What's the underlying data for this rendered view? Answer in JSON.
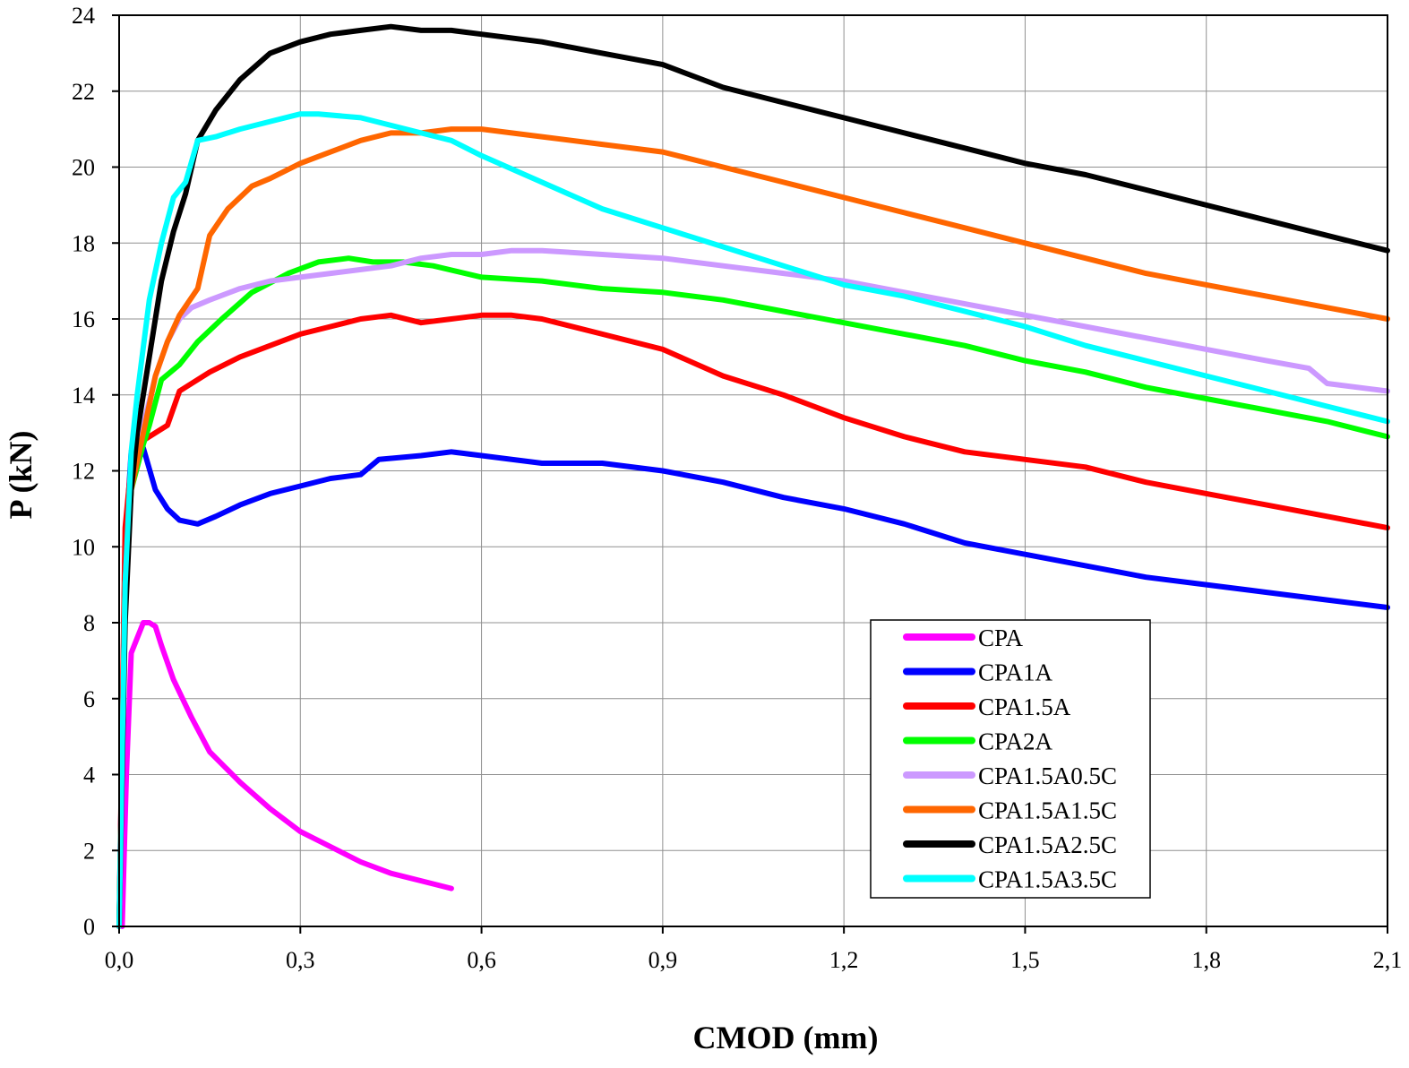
{
  "chart_data": {
    "type": "line",
    "title": "",
    "xlabel": "CMOD (mm)",
    "ylabel": "P (kN)",
    "xlim": [
      0,
      2.1
    ],
    "ylim": [
      0,
      24
    ],
    "xticks": [
      "0,0",
      "0,3",
      "0,6",
      "0,9",
      "1,2",
      "1,5",
      "1,8",
      "2,1"
    ],
    "yticks": [
      "0",
      "2",
      "4",
      "6",
      "8",
      "10",
      "12",
      "14",
      "16",
      "18",
      "20",
      "22",
      "24"
    ],
    "grid": true,
    "legend_position": "bottom-right",
    "series": [
      {
        "name": "CPA",
        "color": "#ff00ff",
        "x": [
          0.005,
          0.012,
          0.02,
          0.03,
          0.04,
          0.05,
          0.06,
          0.07,
          0.09,
          0.12,
          0.15,
          0.2,
          0.25,
          0.3,
          0.35,
          0.4,
          0.45,
          0.5,
          0.55
        ],
        "y": [
          0,
          4,
          7.2,
          7.6,
          8.0,
          8.0,
          7.9,
          7.4,
          6.5,
          5.5,
          4.6,
          3.8,
          3.1,
          2.5,
          2.1,
          1.7,
          1.4,
          1.2,
          1.0
        ]
      },
      {
        "name": "CPA1A",
        "color": "#0000ff",
        "x": [
          0,
          0.01,
          0.02,
          0.03,
          0.04,
          0.06,
          0.08,
          0.1,
          0.13,
          0.16,
          0.2,
          0.25,
          0.3,
          0.35,
          0.4,
          0.43,
          0.5,
          0.55,
          0.6,
          0.7,
          0.8,
          0.9,
          1.0,
          1.1,
          1.2,
          1.3,
          1.4,
          1.5,
          1.6,
          1.7,
          1.8,
          1.9,
          2.0,
          2.1
        ],
        "y": [
          0,
          10,
          12.5,
          13.0,
          12.6,
          11.5,
          11.0,
          10.7,
          10.6,
          10.8,
          11.1,
          11.4,
          11.6,
          11.8,
          11.9,
          12.3,
          12.4,
          12.5,
          12.4,
          12.2,
          12.2,
          12.0,
          11.7,
          11.3,
          11.0,
          10.6,
          10.1,
          9.8,
          9.5,
          9.2,
          9.0,
          8.8,
          8.6,
          8.4
        ]
      },
      {
        "name": "CPA1.5A",
        "color": "#ff0000",
        "x": [
          0,
          0.01,
          0.02,
          0.04,
          0.06,
          0.08,
          0.1,
          0.12,
          0.15,
          0.2,
          0.25,
          0.3,
          0.35,
          0.4,
          0.45,
          0.5,
          0.55,
          0.6,
          0.65,
          0.7,
          0.8,
          0.9,
          1.0,
          1.1,
          1.2,
          1.3,
          1.4,
          1.5,
          1.6,
          1.7,
          1.8,
          1.9,
          2.0,
          2.1
        ],
        "y": [
          0,
          10.5,
          12.2,
          12.8,
          13.0,
          13.2,
          14.1,
          14.3,
          14.6,
          15.0,
          15.3,
          15.6,
          15.8,
          16.0,
          16.1,
          15.9,
          16.0,
          16.1,
          16.1,
          16.0,
          15.6,
          15.2,
          14.5,
          14.0,
          13.4,
          12.9,
          12.5,
          12.3,
          12.1,
          11.7,
          11.4,
          11.1,
          10.8,
          10.5
        ]
      },
      {
        "name": "CPA2A",
        "color": "#00ff00",
        "x": [
          0,
          0.01,
          0.02,
          0.04,
          0.05,
          0.07,
          0.1,
          0.13,
          0.17,
          0.22,
          0.28,
          0.33,
          0.38,
          0.42,
          0.47,
          0.52,
          0.6,
          0.7,
          0.8,
          0.9,
          1.0,
          1.1,
          1.2,
          1.3,
          1.4,
          1.5,
          1.6,
          1.7,
          1.8,
          1.9,
          2.0,
          2.1
        ],
        "y": [
          0,
          9,
          11.5,
          12.7,
          13.2,
          14.4,
          14.8,
          15.4,
          16.0,
          16.7,
          17.2,
          17.5,
          17.6,
          17.5,
          17.5,
          17.4,
          17.1,
          17.0,
          16.8,
          16.7,
          16.5,
          16.2,
          15.9,
          15.6,
          15.3,
          14.9,
          14.6,
          14.2,
          13.9,
          13.6,
          13.3,
          12.9
        ]
      },
      {
        "name": "CPA1.5A0.5C",
        "color": "#cc99ff",
        "x": [
          0,
          0.01,
          0.02,
          0.04,
          0.06,
          0.08,
          0.1,
          0.12,
          0.15,
          0.2,
          0.25,
          0.3,
          0.35,
          0.4,
          0.45,
          0.5,
          0.55,
          0.6,
          0.65,
          0.7,
          0.8,
          0.9,
          1.0,
          1.1,
          1.2,
          1.3,
          1.4,
          1.5,
          1.6,
          1.7,
          1.8,
          1.9,
          1.97,
          2.0,
          2.1
        ],
        "y": [
          0,
          9,
          12.0,
          13.2,
          14.5,
          15.4,
          16.0,
          16.3,
          16.5,
          16.8,
          17.0,
          17.1,
          17.2,
          17.3,
          17.4,
          17.6,
          17.7,
          17.7,
          17.8,
          17.8,
          17.7,
          17.6,
          17.4,
          17.2,
          17.0,
          16.7,
          16.4,
          16.1,
          15.8,
          15.5,
          15.2,
          14.9,
          14.7,
          14.3,
          14.1
        ]
      },
      {
        "name": "CPA1.5A1.5C",
        "color": "#ff6600",
        "x": [
          0,
          0.01,
          0.02,
          0.04,
          0.06,
          0.08,
          0.1,
          0.13,
          0.15,
          0.18,
          0.22,
          0.25,
          0.3,
          0.35,
          0.4,
          0.45,
          0.5,
          0.55,
          0.6,
          0.7,
          0.8,
          0.9,
          1.0,
          1.1,
          1.2,
          1.3,
          1.4,
          1.5,
          1.6,
          1.7,
          1.8,
          1.9,
          2.0,
          2.1
        ],
        "y": [
          0,
          9,
          11.5,
          13.0,
          14.5,
          15.4,
          16.1,
          16.8,
          18.2,
          18.9,
          19.5,
          19.7,
          20.1,
          20.4,
          20.7,
          20.9,
          20.9,
          21.0,
          21.0,
          20.8,
          20.6,
          20.4,
          20.0,
          19.6,
          19.2,
          18.8,
          18.4,
          18.0,
          17.6,
          17.2,
          16.9,
          16.6,
          16.3,
          16.0
        ]
      },
      {
        "name": "CPA1.5A2.5C",
        "color": "#000000",
        "x": [
          0,
          0.01,
          0.02,
          0.03,
          0.05,
          0.07,
          0.09,
          0.11,
          0.13,
          0.16,
          0.2,
          0.25,
          0.3,
          0.35,
          0.4,
          0.45,
          0.5,
          0.55,
          0.6,
          0.7,
          0.8,
          0.9,
          1.0,
          1.1,
          1.2,
          1.3,
          1.4,
          1.5,
          1.6,
          1.7,
          1.8,
          1.9,
          2.0,
          2.1
        ],
        "y": [
          0,
          8,
          11.5,
          13.0,
          15.0,
          17.0,
          18.3,
          19.3,
          20.7,
          21.5,
          22.3,
          23.0,
          23.3,
          23.5,
          23.6,
          23.7,
          23.6,
          23.6,
          23.5,
          23.3,
          23.0,
          22.7,
          22.1,
          21.7,
          21.3,
          20.9,
          20.5,
          20.1,
          19.8,
          19.4,
          19.0,
          18.6,
          18.2,
          17.8
        ]
      },
      {
        "name": "CPA1.5A3.5C",
        "color": "#00ffff",
        "x": [
          0,
          0.01,
          0.02,
          0.03,
          0.05,
          0.07,
          0.09,
          0.11,
          0.13,
          0.16,
          0.2,
          0.25,
          0.3,
          0.33,
          0.4,
          0.45,
          0.5,
          0.55,
          0.6,
          0.7,
          0.8,
          0.9,
          1.0,
          1.1,
          1.2,
          1.3,
          1.4,
          1.5,
          1.6,
          1.7,
          1.8,
          1.9,
          2.0,
          2.1
        ],
        "y": [
          0,
          9,
          12.5,
          14.0,
          16.5,
          18.0,
          19.2,
          19.6,
          20.7,
          20.8,
          21.0,
          21.2,
          21.4,
          21.4,
          21.3,
          21.1,
          20.9,
          20.7,
          20.3,
          19.6,
          18.9,
          18.4,
          17.9,
          17.4,
          16.9,
          16.6,
          16.2,
          15.8,
          15.3,
          14.9,
          14.5,
          14.1,
          13.7,
          13.3
        ]
      }
    ]
  }
}
